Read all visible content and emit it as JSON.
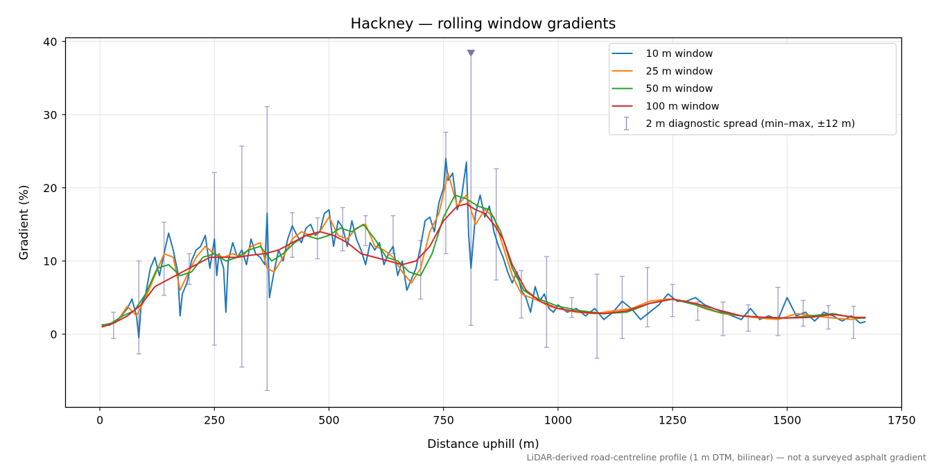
{
  "chart_data": {
    "type": "line",
    "title": "Hackney — rolling window gradients",
    "xlabel": "Distance uphill (m)",
    "ylabel": "Gradient (%)",
    "footnote": "LiDAR-derived road-centreline profile (1 m DTM, bilinear) — not a surveyed asphalt gradient",
    "xlim": [
      -75,
      1750
    ],
    "ylim": [
      -10,
      40.5
    ],
    "xticks": [
      0,
      250,
      500,
      750,
      1000,
      1250,
      1500,
      1750
    ],
    "yticks": [
      0,
      10,
      20,
      30,
      40
    ],
    "grid": true,
    "legend_position": "top-right",
    "series": [
      {
        "name": "10 m window",
        "color": "#1f77b4",
        "x": [
          5,
          20,
          40,
          60,
          70,
          80,
          85,
          90,
          100,
          110,
          120,
          130,
          140,
          150,
          160,
          170,
          175,
          180,
          190,
          200,
          210,
          220,
          230,
          240,
          250,
          255,
          260,
          270,
          275,
          280,
          290,
          300,
          310,
          320,
          330,
          340,
          350,
          360,
          365,
          370,
          380,
          390,
          400,
          410,
          420,
          430,
          440,
          450,
          460,
          470,
          480,
          490,
          500,
          510,
          520,
          530,
          540,
          550,
          560,
          570,
          580,
          590,
          600,
          610,
          620,
          630,
          640,
          650,
          660,
          670,
          680,
          690,
          700,
          710,
          720,
          730,
          740,
          750,
          755,
          760,
          770,
          780,
          790,
          800,
          805,
          810,
          820,
          830,
          840,
          850,
          860,
          870,
          880,
          890,
          900,
          910,
          920,
          930,
          940,
          950,
          960,
          970,
          980,
          990,
          1000,
          1020,
          1040,
          1060,
          1080,
          1100,
          1120,
          1140,
          1160,
          1180,
          1200,
          1220,
          1240,
          1260,
          1280,
          1300,
          1320,
          1340,
          1360,
          1380,
          1400,
          1420,
          1440,
          1460,
          1480,
          1500,
          1520,
          1540,
          1560,
          1580,
          1600,
          1620,
          1640,
          1660,
          1670
        ],
        "y": [
          1.3,
          1.2,
          2.0,
          3.5,
          4.8,
          2.5,
          -0.5,
          4.0,
          5.5,
          9.0,
          10.5,
          8.0,
          11.0,
          13.8,
          11.5,
          8.5,
          2.5,
          5.5,
          7.0,
          10.0,
          11.5,
          12.0,
          13.5,
          9.0,
          13.0,
          8.0,
          11.0,
          9.0,
          3.0,
          10.0,
          12.5,
          10.5,
          11.5,
          9.5,
          13.0,
          11.0,
          10.5,
          9.5,
          16.5,
          5.0,
          8.5,
          11.5,
          10.0,
          13.0,
          14.8,
          13.5,
          12.5,
          14.5,
          15.0,
          13.5,
          14.0,
          16.5,
          17.0,
          12.0,
          15.5,
          14.5,
          12.0,
          15.5,
          13.0,
          11.5,
          9.5,
          12.5,
          11.5,
          12.5,
          9.5,
          11.0,
          12.0,
          8.0,
          10.0,
          6.0,
          7.5,
          9.0,
          12.0,
          15.5,
          16.0,
          14.0,
          18.0,
          20.0,
          24.0,
          21.0,
          22.0,
          17.0,
          19.0,
          23.5,
          13.5,
          9.0,
          16.5,
          19.0,
          16.0,
          17.5,
          14.0,
          12.0,
          10.5,
          8.5,
          7.0,
          8.5,
          6.0,
          5.0,
          3.0,
          6.5,
          4.5,
          5.5,
          3.5,
          3.0,
          4.0,
          3.0,
          3.5,
          2.5,
          3.5,
          2.0,
          3.0,
          4.5,
          3.5,
          2.0,
          3.0,
          4.0,
          5.5,
          4.5,
          4.5,
          5.0,
          4.0,
          3.5,
          3.0,
          2.5,
          2.0,
          3.5,
          2.0,
          2.5,
          2.0,
          5.0,
          2.5,
          3.0,
          1.8,
          3.0,
          2.5,
          1.8,
          2.5,
          1.5,
          1.7
        ]
      },
      {
        "name": "25 m window",
        "color": "#ff7f0e",
        "x": [
          5,
          20,
          40,
          60,
          80,
          100,
          120,
          140,
          160,
          175,
          190,
          210,
          230,
          250,
          270,
          290,
          310,
          330,
          350,
          365,
          380,
          400,
          420,
          440,
          460,
          480,
          500,
          520,
          540,
          560,
          580,
          600,
          620,
          640,
          660,
          680,
          700,
          720,
          740,
          760,
          780,
          800,
          820,
          840,
          860,
          880,
          900,
          920,
          940,
          960,
          980,
          1000,
          1040,
          1080,
          1120,
          1160,
          1200,
          1240,
          1280,
          1320,
          1360,
          1400,
          1440,
          1480,
          1520,
          1560,
          1600,
          1640,
          1670
        ],
        "y": [
          1.0,
          1.3,
          2.0,
          3.8,
          2.5,
          5.0,
          8.0,
          11.0,
          10.5,
          6.0,
          8.0,
          10.5,
          12.0,
          11.0,
          10.5,
          11.0,
          10.5,
          12.0,
          12.5,
          9.0,
          8.5,
          10.5,
          13.0,
          14.0,
          13.5,
          14.0,
          16.0,
          13.5,
          13.0,
          14.5,
          15.0,
          12.0,
          11.5,
          10.5,
          8.5,
          7.0,
          9.0,
          14.0,
          16.5,
          22.0,
          17.5,
          19.0,
          15.0,
          17.0,
          16.0,
          12.0,
          8.0,
          5.5,
          5.0,
          4.5,
          3.8,
          3.5,
          3.0,
          2.8,
          3.2,
          3.5,
          4.5,
          4.8,
          4.5,
          3.5,
          2.8,
          2.5,
          2.2,
          2.0,
          2.8,
          2.5,
          2.2,
          2.0,
          2.3
        ]
      },
      {
        "name": "50 m window",
        "color": "#2ca02c",
        "x": [
          5,
          25,
          50,
          75,
          100,
          125,
          150,
          175,
          200,
          225,
          250,
          275,
          300,
          325,
          350,
          375,
          400,
          425,
          450,
          475,
          500,
          525,
          550,
          575,
          600,
          625,
          650,
          675,
          700,
          725,
          750,
          775,
          800,
          825,
          850,
          875,
          900,
          925,
          950,
          1000,
          1050,
          1100,
          1150,
          1200,
          1250,
          1300,
          1350,
          1400,
          1450,
          1500,
          1550,
          1600,
          1650,
          1670
        ],
        "y": [
          1.2,
          1.5,
          2.5,
          3.2,
          5.5,
          9.0,
          9.5,
          8.0,
          8.5,
          10.5,
          11.0,
          10.0,
          10.5,
          11.5,
          12.0,
          10.0,
          11.0,
          12.5,
          13.5,
          13.0,
          13.5,
          14.5,
          14.0,
          15.0,
          13.0,
          10.5,
          10.0,
          8.5,
          8.0,
          11.0,
          16.0,
          19.0,
          18.5,
          17.5,
          17.0,
          14.0,
          9.0,
          6.0,
          5.0,
          3.8,
          3.2,
          2.8,
          3.0,
          4.2,
          4.8,
          4.0,
          3.0,
          2.5,
          2.3,
          2.2,
          2.5,
          2.8,
          2.2,
          2.2
        ]
      },
      {
        "name": "100 m window",
        "color": "#d62728",
        "x": [
          5,
          30,
          60,
          90,
          120,
          150,
          180,
          210,
          240,
          270,
          300,
          330,
          360,
          390,
          420,
          450,
          480,
          510,
          540,
          570,
          600,
          630,
          660,
          690,
          720,
          750,
          780,
          800,
          820,
          840,
          860,
          880,
          900,
          930,
          960,
          1000,
          1050,
          1100,
          1150,
          1200,
          1250,
          1300,
          1350,
          1400,
          1450,
          1500,
          1550,
          1600,
          1650,
          1670
        ],
        "y": [
          1.0,
          1.5,
          2.5,
          4.0,
          6.5,
          7.5,
          8.5,
          9.5,
          10.5,
          10.5,
          10.5,
          10.8,
          11.0,
          11.5,
          12.5,
          13.5,
          14.0,
          13.5,
          12.5,
          11.0,
          10.5,
          10.0,
          9.5,
          10.0,
          12.0,
          15.5,
          17.5,
          17.8,
          17.0,
          16.5,
          15.0,
          13.0,
          9.5,
          6.0,
          4.5,
          3.5,
          3.0,
          2.8,
          3.2,
          4.2,
          4.8,
          4.2,
          3.3,
          2.5,
          2.3,
          2.2,
          2.3,
          2.7,
          2.3,
          2.3
        ]
      }
    ],
    "error_bars": {
      "name": "2 m diagnostic spread (min–max, ±12 m)",
      "color": "#9a8fbf",
      "x": [
        30,
        85,
        140,
        195,
        250,
        310,
        365,
        420,
        475,
        530,
        580,
        640,
        700,
        755,
        810,
        865,
        920,
        975,
        1030,
        1085,
        1140,
        1195,
        1250,
        1305,
        1360,
        1415,
        1480,
        1535,
        1590,
        1645
      ],
      "y": [
        1.5,
        4.0,
        9.5,
        8.5,
        11.0,
        11.0,
        12.0,
        13.0,
        13.5,
        14.5,
        14.0,
        11.0,
        8.5,
        19.0,
        17.0,
        16.0,
        4.5,
        4.0,
        3.0,
        2.5,
        3.0,
        4.5,
        4.5,
        3.5,
        2.5,
        2.5,
        2.5,
        3.0,
        2.5,
        2.0
      ],
      "lower": [
        -0.6,
        -2.7,
        5.3,
        6.8,
        -1.5,
        -4.5,
        -7.7,
        10.5,
        10.3,
        11.4,
        12.1,
        11.0,
        4.8,
        11.0,
        1.2,
        7.4,
        2.2,
        -1.8,
        2.3,
        -3.3,
        -0.6,
        1.0,
        2.4,
        1.9,
        -0.2,
        0.4,
        -0.2,
        1.1,
        0.7,
        -0.6
      ],
      "upper": [
        3.0,
        10.0,
        15.3,
        11.0,
        22.1,
        25.7,
        31.1,
        16.6,
        15.9,
        17.3,
        16.2,
        16.2,
        12.8,
        27.6,
        38.3,
        22.6,
        8.7,
        10.6,
        5.0,
        8.2,
        7.9,
        9.1,
        6.8,
        4.4,
        4.4,
        4.0,
        6.4,
        4.6,
        3.9,
        3.8
      ],
      "clipped_marker_x": 810
    }
  }
}
